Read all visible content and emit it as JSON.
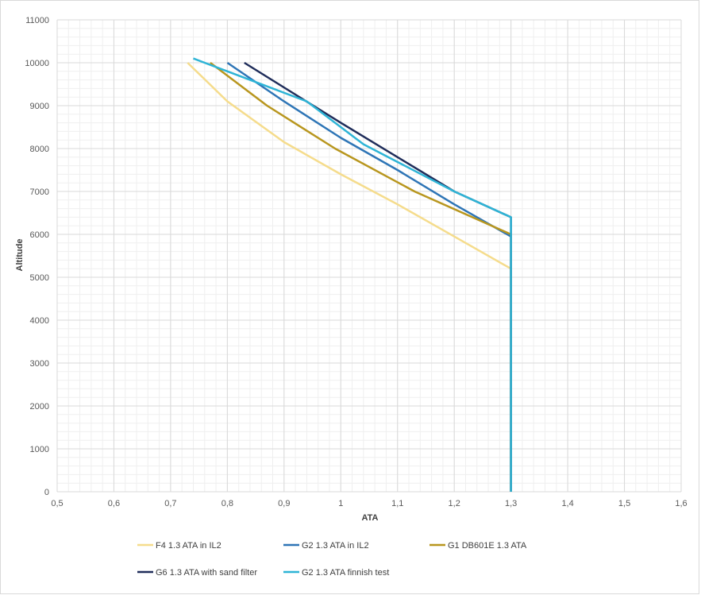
{
  "chart_data": {
    "type": "line",
    "title": "",
    "xlabel": "ATA",
    "ylabel": "Altitude",
    "xlim": [
      0.5,
      1.6
    ],
    "ylim": [
      0,
      11000
    ],
    "xticks": [
      "0,5",
      "0,6",
      "0,7",
      "0,8",
      "0,9",
      "1",
      "1,1",
      "1,2",
      "1,3",
      "1,4",
      "1,5",
      "1,6"
    ],
    "yticks": [
      "0",
      "1000",
      "2000",
      "3000",
      "4000",
      "5000",
      "6000",
      "7000",
      "8000",
      "9000",
      "10000",
      "11000"
    ],
    "grid": true,
    "legend_position": "bottom",
    "series": [
      {
        "name": "F4 1.3 ATA in IL2",
        "color": "#f5dc8c",
        "x": [
          0.73,
          0.8,
          0.9,
          1.0,
          1.1,
          1.2,
          1.3,
          1.3
        ],
        "y": [
          10000,
          9100,
          8150,
          7400,
          6700,
          5950,
          5200,
          0
        ]
      },
      {
        "name": "G2 1.3 ATA in IL2",
        "color": "#2e75b6",
        "x": [
          0.8,
          0.9,
          1.0,
          1.1,
          1.2,
          1.3,
          1.3
        ],
        "y": [
          10000,
          9100,
          8250,
          7500,
          6700,
          5950,
          0
        ]
      },
      {
        "name": "G1 DB601E 1.3 ATA",
        "color": "#b8961e",
        "x": [
          0.77,
          0.87,
          0.99,
          1.13,
          1.3,
          1.3
        ],
        "y": [
          10000,
          9000,
          8000,
          7000,
          6000,
          0
        ]
      },
      {
        "name": "G6 1.3 ATA with sand filter",
        "color": "#1f2d5a",
        "x": [
          0.83,
          1.0,
          1.2,
          1.3,
          1.3
        ],
        "y": [
          10000,
          8600,
          7000,
          6400,
          0
        ]
      },
      {
        "name": "G2 1.3 ATA finnish test",
        "color": "#2eb4d6",
        "x": [
          0.74,
          0.82,
          0.94,
          1.04,
          1.2,
          1.3,
          1.3
        ],
        "y": [
          10100,
          9700,
          9100,
          8100,
          7000,
          6400,
          0
        ]
      }
    ]
  }
}
